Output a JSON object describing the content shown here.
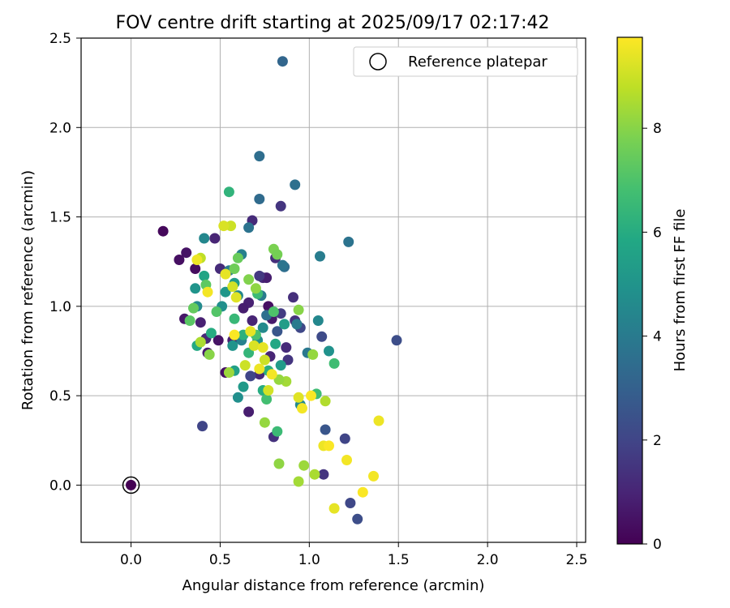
{
  "chart_data": {
    "type": "scatter",
    "title": "FOV centre drift starting at 2025/09/17 02:17:42",
    "xlabel": "Angular distance from reference (arcmin)",
    "ylabel": "Rotation from reference (arcmin)",
    "xlim": [
      -0.28,
      2.55
    ],
    "ylim": [
      -0.32,
      2.5
    ],
    "xticks": [
      "0.0",
      "0.5",
      "1.0",
      "1.5",
      "2.0",
      "2.5"
    ],
    "xtick_values": [
      0,
      0.5,
      1.0,
      1.5,
      2.0,
      2.5
    ],
    "yticks": [
      "0.0",
      "0.5",
      "1.0",
      "1.5",
      "2.0",
      "2.5"
    ],
    "ytick_values": [
      0,
      0.5,
      1.0,
      1.5,
      2.0,
      2.5
    ],
    "grid": true,
    "legend": {
      "position": "top-right",
      "label": "Reference platepar",
      "reference_point": [
        0,
        0
      ]
    },
    "colorbar": {
      "label": "Hours from first FF file",
      "ticks": [
        "0",
        "2",
        "4",
        "6",
        "8"
      ],
      "tick_values": [
        0,
        2,
        4,
        6,
        8
      ],
      "range": [
        0,
        9.75
      ],
      "colormap": "viridis"
    },
    "points": [
      [
        0.0,
        0.0,
        0.0
      ],
      [
        0.18,
        1.42,
        0.2
      ],
      [
        0.27,
        1.26,
        0.4
      ],
      [
        0.31,
        1.3,
        0.5
      ],
      [
        0.3,
        0.93,
        0.6
      ],
      [
        0.36,
        1.21,
        0.3
      ],
      [
        0.39,
        0.91,
        0.9
      ],
      [
        0.42,
        0.82,
        1.1
      ],
      [
        0.43,
        0.74,
        0.7
      ],
      [
        0.47,
        1.38,
        1.0
      ],
      [
        0.5,
        1.21,
        1.2
      ],
      [
        0.49,
        0.81,
        0.5
      ],
      [
        0.53,
        0.63,
        0.4
      ],
      [
        0.57,
        0.81,
        0.9
      ],
      [
        0.68,
        1.48,
        1.2
      ],
      [
        0.84,
        1.56,
        1.5
      ],
      [
        0.74,
        1.16,
        1.1
      ],
      [
        0.76,
        1.16,
        0.8
      ],
      [
        0.72,
        1.17,
        1.6
      ],
      [
        0.66,
        1.02,
        0.9
      ],
      [
        0.63,
        0.99,
        0.8
      ],
      [
        0.68,
        0.92,
        1.0
      ],
      [
        0.77,
        1.0,
        0.4
      ],
      [
        0.79,
        0.93,
        0.7
      ],
      [
        0.84,
        0.96,
        1.7
      ],
      [
        0.91,
        1.05,
        1.3
      ],
      [
        0.92,
        0.92,
        1.4
      ],
      [
        0.87,
        0.77,
        1.2
      ],
      [
        0.88,
        0.7,
        1.5
      ],
      [
        0.72,
        0.62,
        1.1
      ],
      [
        0.67,
        0.61,
        2.0
      ],
      [
        0.66,
        0.41,
        0.8
      ],
      [
        0.8,
        0.27,
        1.4
      ],
      [
        0.4,
        0.33,
        2.0
      ],
      [
        0.78,
        0.72,
        1.0
      ],
      [
        0.81,
        1.27,
        1.3
      ],
      [
        1.07,
        0.83,
        2.2
      ],
      [
        1.49,
        0.81,
        2.3
      ],
      [
        1.2,
        0.26,
        2.0
      ],
      [
        1.23,
        -0.1,
        2.1
      ],
      [
        1.27,
        -0.19,
        2.3
      ],
      [
        1.08,
        0.06,
        1.5
      ],
      [
        1.09,
        0.31,
        2.6
      ],
      [
        0.95,
        0.88,
        2.1
      ],
      [
        0.82,
        0.86,
        2.6
      ],
      [
        0.85,
        2.37,
        3.2
      ],
      [
        0.72,
        1.84,
        3.5
      ],
      [
        0.92,
        1.68,
        3.6
      ],
      [
        0.72,
        1.6,
        3.4
      ],
      [
        0.66,
        1.44,
        3.7
      ],
      [
        0.86,
        1.22,
        3.5
      ],
      [
        0.85,
        1.23,
        3.8
      ],
      [
        1.06,
        1.28,
        4.1
      ],
      [
        1.22,
        1.36,
        3.7
      ],
      [
        0.62,
        1.29,
        4.2
      ],
      [
        0.55,
        1.2,
        4.0
      ],
      [
        0.41,
        1.38,
        4.5
      ],
      [
        0.37,
        1.0,
        4.6
      ],
      [
        0.36,
        1.1,
        5.0
      ],
      [
        0.51,
        1.0,
        4.8
      ],
      [
        0.53,
        1.08,
        5.1
      ],
      [
        0.58,
        1.13,
        5.3
      ],
      [
        0.6,
        1.06,
        4.4
      ],
      [
        0.73,
        1.06,
        4.0
      ],
      [
        0.76,
        0.95,
        3.6
      ],
      [
        0.74,
        0.88,
        4.6
      ],
      [
        0.71,
        0.81,
        4.8
      ],
      [
        0.62,
        0.81,
        4.3
      ],
      [
        0.57,
        0.78,
        5.0
      ],
      [
        0.93,
        0.9,
        4.0
      ],
      [
        0.99,
        0.74,
        3.9
      ],
      [
        1.05,
        0.92,
        4.5
      ],
      [
        1.11,
        0.75,
        4.9
      ],
      [
        0.95,
        0.45,
        4.6
      ],
      [
        0.63,
        0.55,
        5.2
      ],
      [
        0.6,
        0.49,
        4.8
      ],
      [
        0.58,
        0.64,
        5.5
      ],
      [
        0.81,
        0.79,
        5.8
      ],
      [
        0.86,
        0.9,
        5.4
      ],
      [
        0.84,
        0.67,
        5.3
      ],
      [
        0.37,
        0.78,
        5.9
      ],
      [
        0.41,
        1.17,
        5.7
      ],
      [
        0.55,
        1.64,
        6.3
      ],
      [
        0.45,
        0.85,
        6.0
      ],
      [
        0.63,
        0.84,
        6.2
      ],
      [
        0.58,
        0.93,
        6.5
      ],
      [
        0.66,
        0.74,
        6.4
      ],
      [
        0.77,
        0.64,
        6.1
      ],
      [
        0.74,
        0.53,
        6.0
      ],
      [
        0.76,
        0.48,
        6.8
      ],
      [
        0.82,
        0.3,
        6.6
      ],
      [
        1.04,
        0.51,
        6.7
      ],
      [
        1.14,
        0.68,
        6.7
      ],
      [
        0.7,
        0.84,
        6.9
      ],
      [
        0.71,
        1.07,
        6.6
      ],
      [
        0.8,
        0.97,
        7.0
      ],
      [
        0.48,
        0.97,
        7.1
      ],
      [
        0.33,
        0.92,
        7.2
      ],
      [
        0.35,
        0.99,
        7.4
      ],
      [
        0.42,
        1.12,
        7.3
      ],
      [
        0.58,
        1.21,
        7.6
      ],
      [
        0.6,
        1.27,
        7.5
      ],
      [
        0.8,
        1.32,
        7.8
      ],
      [
        0.82,
        1.29,
        7.7
      ],
      [
        0.66,
        1.15,
        7.9
      ],
      [
        0.7,
        1.1,
        8.1
      ],
      [
        0.94,
        0.98,
        8.0
      ],
      [
        0.75,
        0.35,
        8.2
      ],
      [
        0.83,
        0.12,
        8.1
      ],
      [
        0.97,
        0.11,
        8.3
      ],
      [
        0.94,
        0.02,
        8.4
      ],
      [
        1.03,
        0.06,
        8.5
      ],
      [
        1.02,
        0.73,
        8.2
      ],
      [
        1.09,
        0.47,
        8.6
      ],
      [
        0.87,
        0.58,
        8.4
      ],
      [
        0.83,
        0.59,
        8.2
      ],
      [
        0.55,
        0.63,
        8.3
      ],
      [
        0.44,
        0.73,
        8.0
      ],
      [
        0.39,
        0.8,
        8.5
      ],
      [
        0.56,
        1.45,
        9.0
      ],
      [
        0.52,
        1.45,
        9.2
      ],
      [
        0.39,
        1.27,
        8.8
      ],
      [
        0.37,
        1.26,
        9.5
      ],
      [
        0.43,
        1.08,
        9.6
      ],
      [
        0.57,
        1.11,
        9.1
      ],
      [
        0.59,
        1.05,
        9.3
      ],
      [
        0.53,
        1.18,
        9.4
      ],
      [
        0.64,
        0.67,
        9.0
      ],
      [
        0.69,
        0.78,
        9.2
      ],
      [
        0.74,
        0.77,
        9.4
      ],
      [
        0.75,
        0.7,
        9.0
      ],
      [
        0.72,
        0.65,
        9.5
      ],
      [
        0.79,
        0.62,
        9.6
      ],
      [
        0.77,
        0.53,
        9.1
      ],
      [
        0.94,
        0.49,
        9.3
      ],
      [
        0.96,
        0.43,
        9.6
      ],
      [
        1.01,
        0.5,
        9.7
      ],
      [
        1.08,
        0.22,
        9.5
      ],
      [
        1.11,
        0.22,
        9.7
      ],
      [
        1.21,
        0.14,
        9.6
      ],
      [
        1.14,
        -0.13,
        9.4
      ],
      [
        1.3,
        -0.04,
        9.7
      ],
      [
        1.36,
        0.05,
        9.6
      ],
      [
        1.39,
        0.36,
        9.5
      ],
      [
        0.58,
        0.84,
        9.7
      ],
      [
        0.67,
        0.86,
        9.4
      ]
    ]
  }
}
